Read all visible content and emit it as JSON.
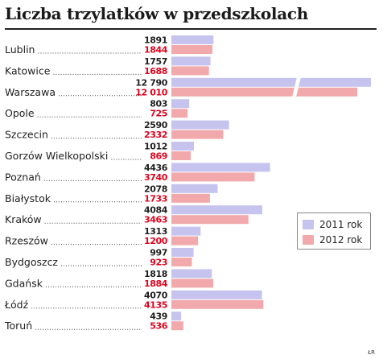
{
  "chart_data": {
    "type": "bar",
    "orientation": "horizontal",
    "title": "Liczba trzylatków w przedszkolach",
    "categories": [
      "Lublin",
      "Katowice",
      "Warszawa",
      "Opole",
      "Szczecin",
      "Gorzów Wielkopolski",
      "Poznań",
      "Białystok",
      "Kraków",
      "Rzeszów",
      "Bydgoszcz",
      "Gdańsk",
      "Łódź",
      "Toruń"
    ],
    "series": [
      {
        "name": "2011 rok",
        "color": "#c6c3ef",
        "values": [
          1891,
          1757,
          12790,
          803,
          2590,
          1012,
          4436,
          2078,
          4084,
          1313,
          997,
          1818,
          4070,
          439
        ],
        "labels": [
          "1891",
          "1757",
          "12 790",
          "803",
          "2590",
          "1012",
          "4436",
          "2078",
          "4084",
          "1313",
          "997",
          "1818",
          "4070",
          "439"
        ]
      },
      {
        "name": "2012 rok",
        "color": "#f2a9ab",
        "values": [
          1844,
          1688,
          12010,
          725,
          2332,
          869,
          3740,
          1733,
          3463,
          1200,
          923,
          1884,
          4135,
          536
        ],
        "labels": [
          "1844",
          "1688",
          "12 010",
          "725",
          "2332",
          "869",
          "3740",
          "1733",
          "3463",
          "1200",
          "923",
          "1884",
          "4135",
          "536"
        ]
      }
    ],
    "axis_break": {
      "category": "Warszawa"
    },
    "legend_position": "right",
    "grid": false
  },
  "credit": "ŁR"
}
